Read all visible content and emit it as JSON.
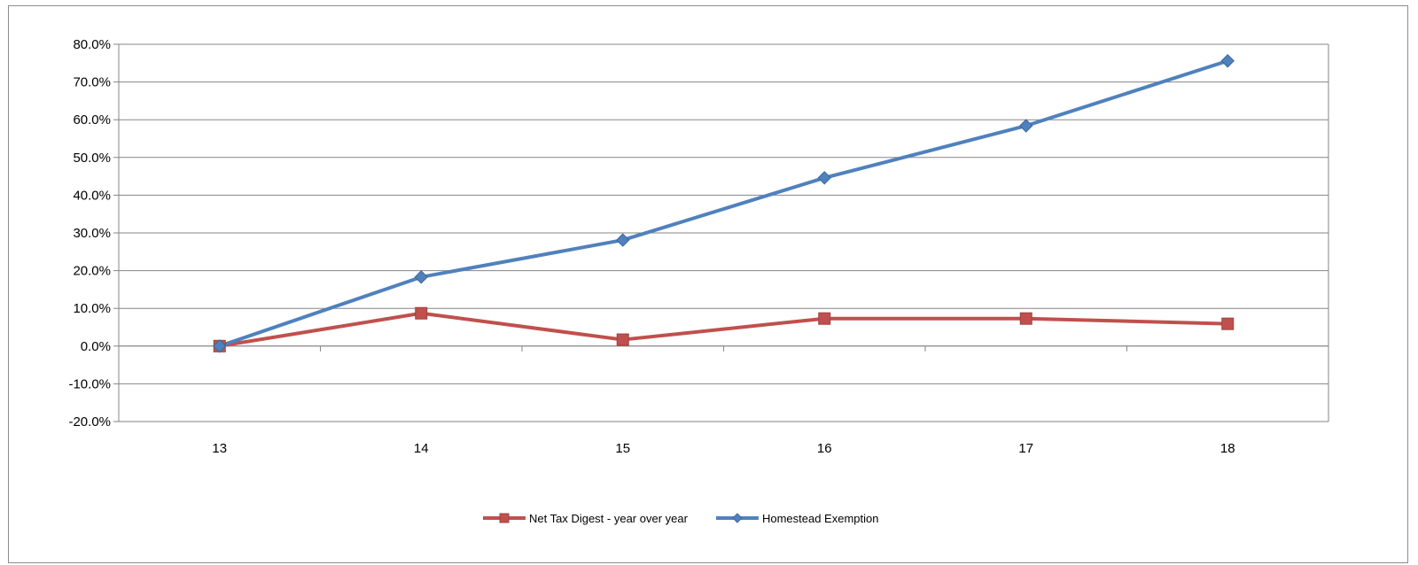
{
  "chart_data": {
    "type": "line",
    "title": "",
    "xlabel": "",
    "ylabel": "",
    "categories": [
      "13",
      "14",
      "15",
      "16",
      "17",
      "18"
    ],
    "ylim": [
      -20,
      80
    ],
    "y_tick_step": 10,
    "y_tick_labels": [
      "-20.0%",
      "-10.0%",
      "0.0%",
      "10.0%",
      "20.0%",
      "30.0%",
      "40.0%",
      "50.0%",
      "60.0%",
      "70.0%",
      "80.0%"
    ],
    "grid": "horizontal",
    "legend_position": "bottom",
    "series": [
      {
        "name": "Net Tax Digest - year over year",
        "values": [
          0.0,
          8.7,
          1.7,
          7.3,
          7.3,
          5.9
        ],
        "color": "#C0504D",
        "marker": "square"
      },
      {
        "name": "Homestead Exemption",
        "values": [
          0.0,
          18.3,
          28.1,
          44.6,
          58.4,
          75.6
        ],
        "color": "#4F81BD",
        "marker": "diamond"
      }
    ]
  }
}
